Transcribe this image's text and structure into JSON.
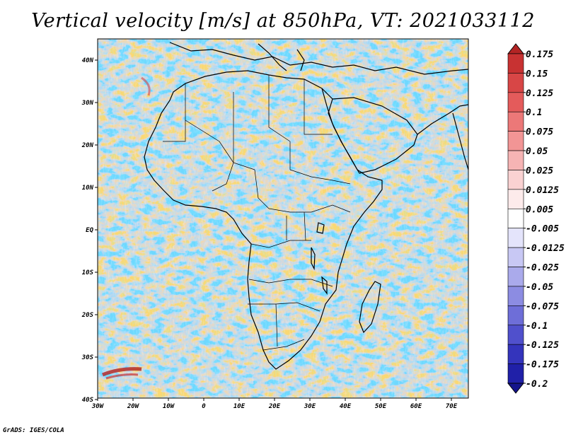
{
  "title": "Vertical velocity [m/s] at 850hPa, VT: 2021033112",
  "footer": "GrADS: IGES/COLA",
  "map": {
    "region": "Africa",
    "variable": "Vertical velocity",
    "units": "m/s",
    "level": "850hPa",
    "valid_time": "2021033112",
    "lon_range": [
      -30,
      75
    ],
    "lat_range": [
      -40,
      45
    ],
    "x_ticks": [
      "30W",
      "20W",
      "10W",
      "0",
      "10E",
      "20E",
      "30E",
      "40E",
      "50E",
      "60E",
      "70E"
    ],
    "y_ticks": [
      "40N",
      "30N",
      "20N",
      "10N",
      "EQ",
      "10S",
      "20S",
      "30S",
      "40S"
    ]
  },
  "colorbar": {
    "labels": [
      "0.175",
      "0.15",
      "0.125",
      "0.1",
      "0.075",
      "0.05",
      "0.025",
      "0.0125",
      "0.005",
      "-0.005",
      "-0.0125",
      "-0.025",
      "-0.05",
      "-0.075",
      "-0.1",
      "-0.125",
      "-0.175",
      "-0.2"
    ],
    "colors": [
      "#b32424",
      "#c83232",
      "#d84646",
      "#e45b5b",
      "#ec7878",
      "#f29595",
      "#f6b4b4",
      "#fad2d2",
      "#fdebeb",
      "#ffffff",
      "#e4e4fb",
      "#c8c8f4",
      "#aaaaeb",
      "#8c8ce2",
      "#6e6ed8",
      "#5050cc",
      "#3434bc",
      "#2020a8",
      "#14148c"
    ]
  }
}
